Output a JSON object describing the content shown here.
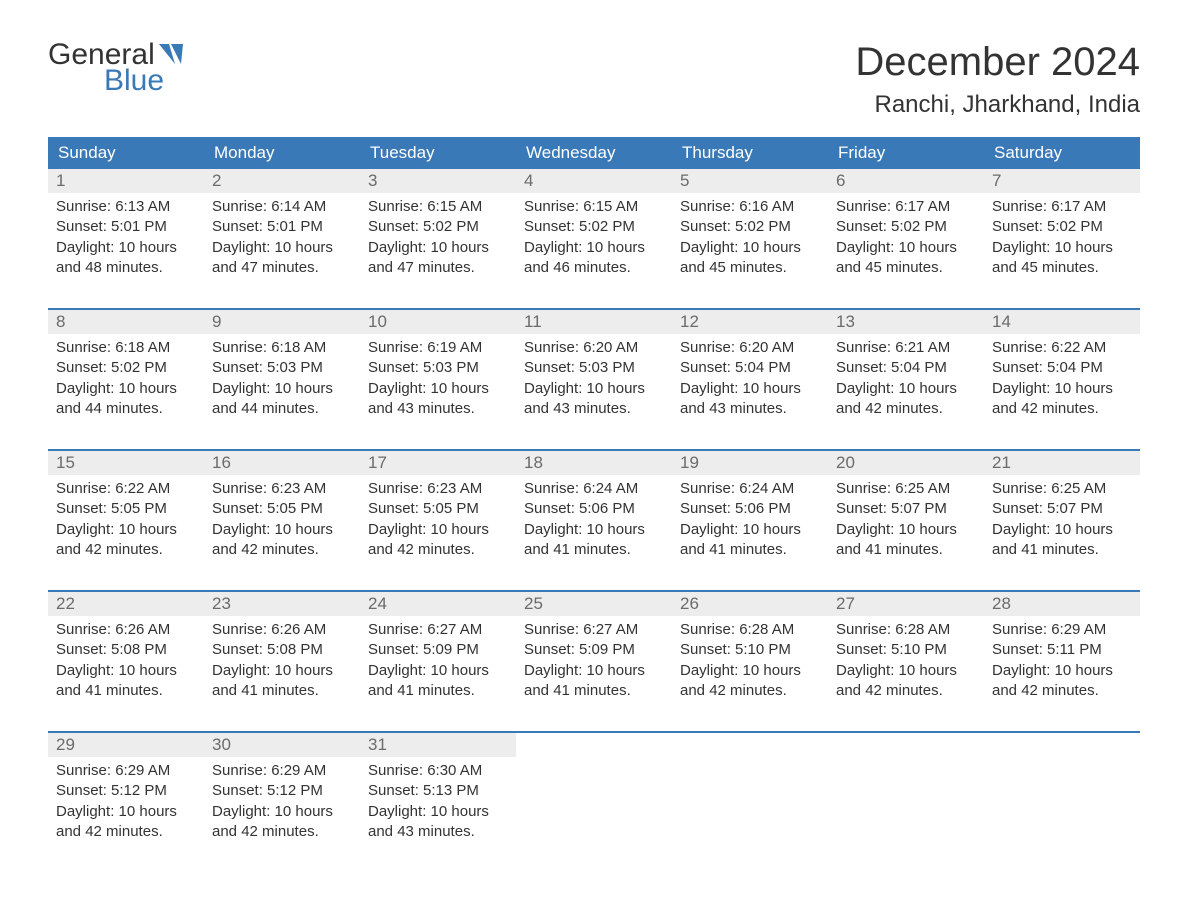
{
  "brand": {
    "word1": "General",
    "word2": "Blue",
    "word1_color": "#333333",
    "word2_color": "#3a79b7",
    "flag_color": "#3a79b7"
  },
  "title": "December 2024",
  "location": "Ranchi, Jharkhand, India",
  "colors": {
    "header_bg": "#3a79b7",
    "header_text": "#ffffff",
    "daynum_bg": "#ededed",
    "daynum_text": "#6b6b6b",
    "body_text": "#333333",
    "row_separator": "#3a79b7",
    "page_bg": "#ffffff"
  },
  "weekdays": [
    "Sunday",
    "Monday",
    "Tuesday",
    "Wednesday",
    "Thursday",
    "Friday",
    "Saturday"
  ],
  "label_sunrise": "Sunrise: ",
  "label_sunset": "Sunset: ",
  "label_daylight_prefix": "Daylight: ",
  "label_daylight_middle": " hours",
  "label_daylight_suffix": " minutes.",
  "label_and": "and ",
  "days": [
    {
      "n": "1",
      "sunrise": "6:13 AM",
      "sunset": "5:01 PM",
      "dl_h": "10",
      "dl_m": "48"
    },
    {
      "n": "2",
      "sunrise": "6:14 AM",
      "sunset": "5:01 PM",
      "dl_h": "10",
      "dl_m": "47"
    },
    {
      "n": "3",
      "sunrise": "6:15 AM",
      "sunset": "5:02 PM",
      "dl_h": "10",
      "dl_m": "47"
    },
    {
      "n": "4",
      "sunrise": "6:15 AM",
      "sunset": "5:02 PM",
      "dl_h": "10",
      "dl_m": "46"
    },
    {
      "n": "5",
      "sunrise": "6:16 AM",
      "sunset": "5:02 PM",
      "dl_h": "10",
      "dl_m": "45"
    },
    {
      "n": "6",
      "sunrise": "6:17 AM",
      "sunset": "5:02 PM",
      "dl_h": "10",
      "dl_m": "45"
    },
    {
      "n": "7",
      "sunrise": "6:17 AM",
      "sunset": "5:02 PM",
      "dl_h": "10",
      "dl_m": "45"
    },
    {
      "n": "8",
      "sunrise": "6:18 AM",
      "sunset": "5:02 PM",
      "dl_h": "10",
      "dl_m": "44"
    },
    {
      "n": "9",
      "sunrise": "6:18 AM",
      "sunset": "5:03 PM",
      "dl_h": "10",
      "dl_m": "44"
    },
    {
      "n": "10",
      "sunrise": "6:19 AM",
      "sunset": "5:03 PM",
      "dl_h": "10",
      "dl_m": "43"
    },
    {
      "n": "11",
      "sunrise": "6:20 AM",
      "sunset": "5:03 PM",
      "dl_h": "10",
      "dl_m": "43"
    },
    {
      "n": "12",
      "sunrise": "6:20 AM",
      "sunset": "5:04 PM",
      "dl_h": "10",
      "dl_m": "43"
    },
    {
      "n": "13",
      "sunrise": "6:21 AM",
      "sunset": "5:04 PM",
      "dl_h": "10",
      "dl_m": "42"
    },
    {
      "n": "14",
      "sunrise": "6:22 AM",
      "sunset": "5:04 PM",
      "dl_h": "10",
      "dl_m": "42"
    },
    {
      "n": "15",
      "sunrise": "6:22 AM",
      "sunset": "5:05 PM",
      "dl_h": "10",
      "dl_m": "42"
    },
    {
      "n": "16",
      "sunrise": "6:23 AM",
      "sunset": "5:05 PM",
      "dl_h": "10",
      "dl_m": "42"
    },
    {
      "n": "17",
      "sunrise": "6:23 AM",
      "sunset": "5:05 PM",
      "dl_h": "10",
      "dl_m": "42"
    },
    {
      "n": "18",
      "sunrise": "6:24 AM",
      "sunset": "5:06 PM",
      "dl_h": "10",
      "dl_m": "41"
    },
    {
      "n": "19",
      "sunrise": "6:24 AM",
      "sunset": "5:06 PM",
      "dl_h": "10",
      "dl_m": "41"
    },
    {
      "n": "20",
      "sunrise": "6:25 AM",
      "sunset": "5:07 PM",
      "dl_h": "10",
      "dl_m": "41"
    },
    {
      "n": "21",
      "sunrise": "6:25 AM",
      "sunset": "5:07 PM",
      "dl_h": "10",
      "dl_m": "41"
    },
    {
      "n": "22",
      "sunrise": "6:26 AM",
      "sunset": "5:08 PM",
      "dl_h": "10",
      "dl_m": "41"
    },
    {
      "n": "23",
      "sunrise": "6:26 AM",
      "sunset": "5:08 PM",
      "dl_h": "10",
      "dl_m": "41"
    },
    {
      "n": "24",
      "sunrise": "6:27 AM",
      "sunset": "5:09 PM",
      "dl_h": "10",
      "dl_m": "41"
    },
    {
      "n": "25",
      "sunrise": "6:27 AM",
      "sunset": "5:09 PM",
      "dl_h": "10",
      "dl_m": "41"
    },
    {
      "n": "26",
      "sunrise": "6:28 AM",
      "sunset": "5:10 PM",
      "dl_h": "10",
      "dl_m": "42"
    },
    {
      "n": "27",
      "sunrise": "6:28 AM",
      "sunset": "5:10 PM",
      "dl_h": "10",
      "dl_m": "42"
    },
    {
      "n": "28",
      "sunrise": "6:29 AM",
      "sunset": "5:11 PM",
      "dl_h": "10",
      "dl_m": "42"
    },
    {
      "n": "29",
      "sunrise": "6:29 AM",
      "sunset": "5:12 PM",
      "dl_h": "10",
      "dl_m": "42"
    },
    {
      "n": "30",
      "sunrise": "6:29 AM",
      "sunset": "5:12 PM",
      "dl_h": "10",
      "dl_m": "42"
    },
    {
      "n": "31",
      "sunrise": "6:30 AM",
      "sunset": "5:13 PM",
      "dl_h": "10",
      "dl_m": "43"
    }
  ],
  "grid": {
    "columns": 7,
    "first_day_offset": 0,
    "total_cells": 35
  }
}
